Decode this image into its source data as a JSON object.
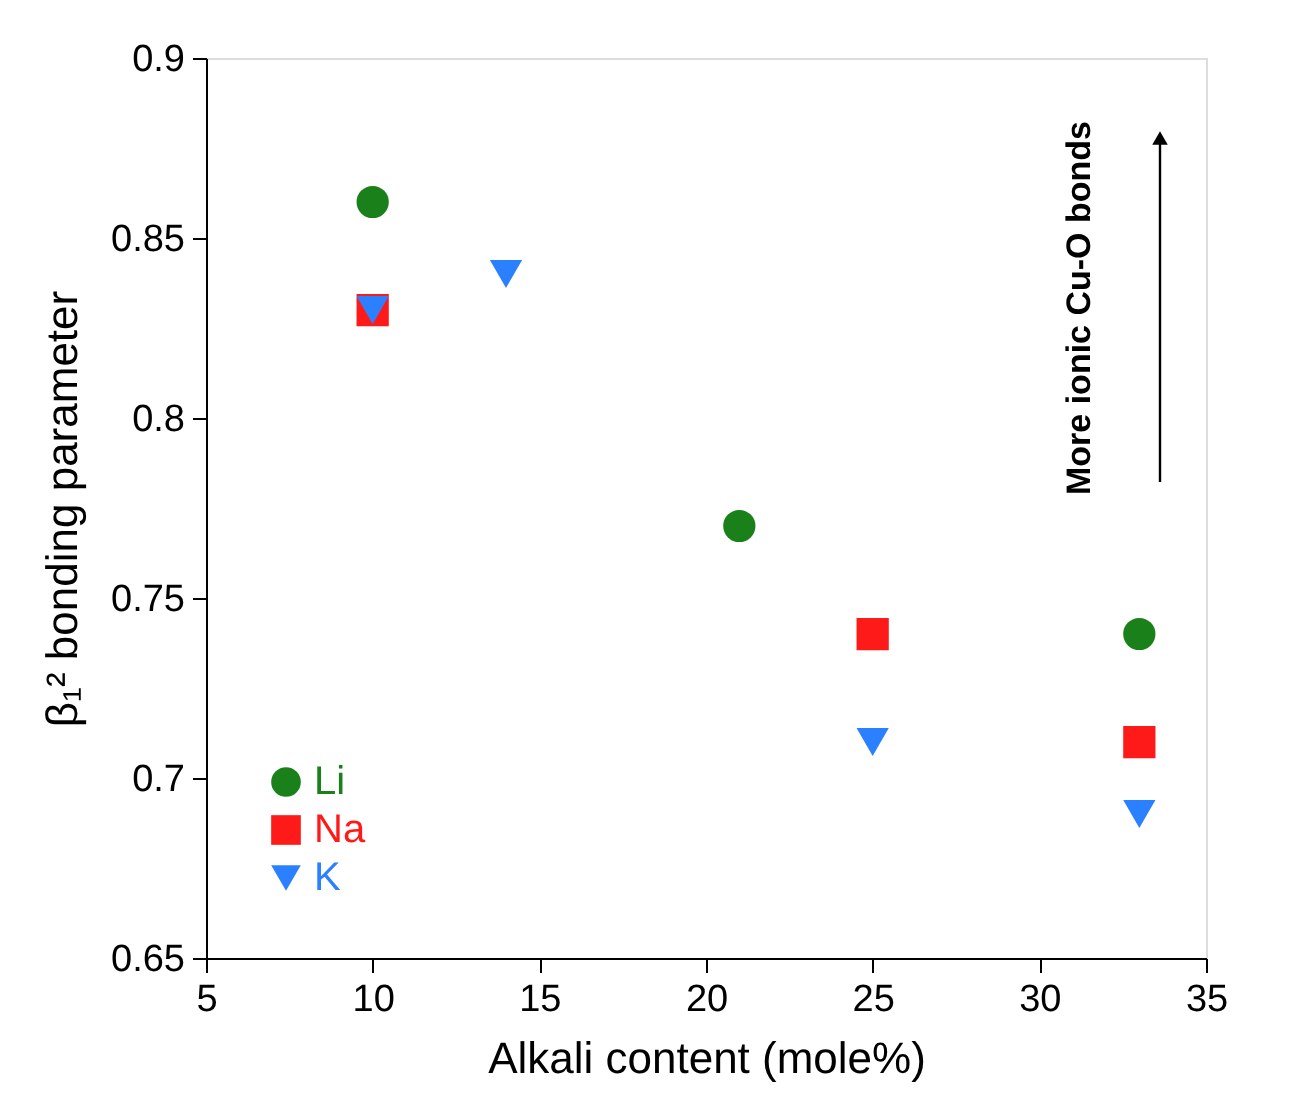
{
  "chart_data": {
    "type": "scatter",
    "xlabel": "Alkali content (mole%)",
    "ylabel": "β₁² bonding parameter",
    "xlim": [
      5,
      35
    ],
    "xticks": [
      5,
      10,
      15,
      20,
      25,
      30,
      35
    ],
    "ylim": [
      0.65,
      0.9
    ],
    "yticks": [
      0.65,
      0.7,
      0.75,
      0.8,
      0.85,
      0.9
    ],
    "grid": false,
    "legend": "bottom left",
    "annotations": [
      "More ionic Cu-O bonds"
    ],
    "series": [
      {
        "name": "Li",
        "color": "#1a801a",
        "marker": "circle",
        "x": [
          10,
          21,
          33
        ],
        "values": [
          0.86,
          0.77,
          0.74
        ]
      },
      {
        "name": "Na",
        "color": "#ff1a1a",
        "marker": "square",
        "x": [
          10,
          25,
          33
        ],
        "values": [
          0.83,
          0.74,
          0.71
        ]
      },
      {
        "name": "K",
        "color": "#2b80ff",
        "marker": "triangle-down",
        "x": [
          10,
          14,
          25,
          33
        ],
        "values": [
          0.83,
          0.84,
          0.71,
          0.69
        ]
      }
    ]
  }
}
